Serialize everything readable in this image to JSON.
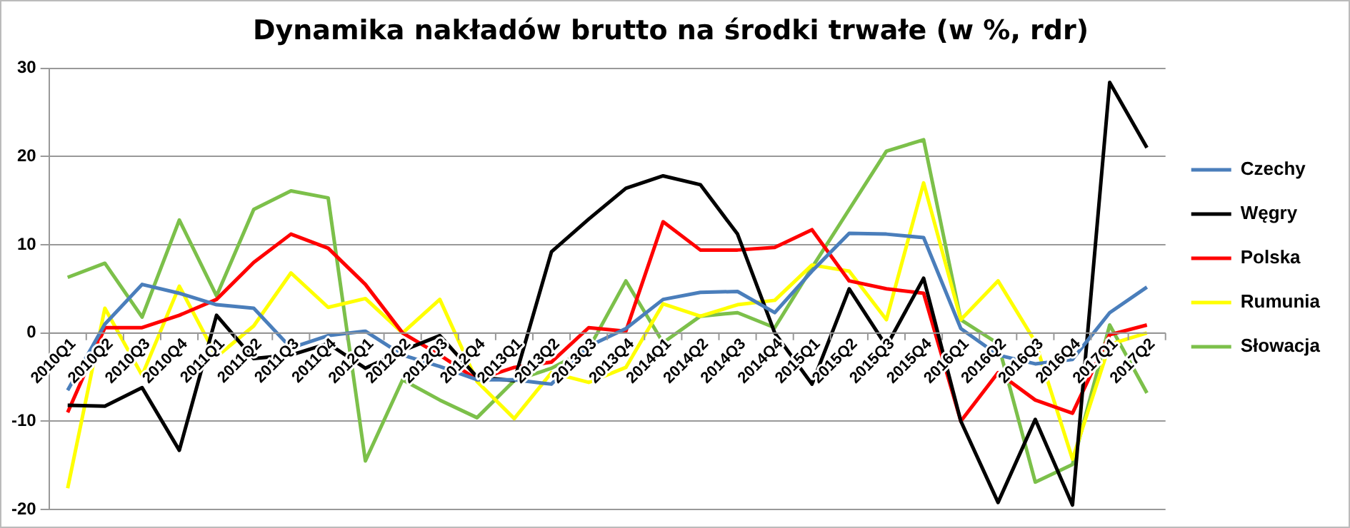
{
  "chart_data": {
    "type": "line",
    "title": "Dynamika nakładów brutto na środki trwałe (w %, rdr)",
    "categories": [
      "2010Q1",
      "2010Q2",
      "2010Q3",
      "2010Q4",
      "2011Q1",
      "2011Q2",
      "2011Q3",
      "2011Q4",
      "2012Q1",
      "2012Q2",
      "2012Q3",
      "2012Q4",
      "2013Q1",
      "2013Q2",
      "2013Q3",
      "2013Q4",
      "2014Q1",
      "2014Q2",
      "2014Q3",
      "2014Q4",
      "2015Q1",
      "2015Q2",
      "2015Q3",
      "2015Q4",
      "2016Q1",
      "2016Q2",
      "2016Q3",
      "2016Q4",
      "2017Q1",
      "2017Q2"
    ],
    "series": [
      {
        "name": "Czechy",
        "color": "#4a7ebb",
        "values": [
          -6.5,
          1,
          5.5,
          4.5,
          3.2,
          2.8,
          -1.7,
          -0.3,
          0.2,
          -2.5,
          -3.8,
          -5.3,
          -5.3,
          -5.8,
          -1.5,
          0.5,
          3.8,
          4.6,
          4.7,
          2.3,
          7,
          11.3,
          11.2,
          10.8,
          0.5,
          -2.5,
          -3.5,
          -3,
          2.3,
          5.2
        ]
      },
      {
        "name": "Węgry",
        "color": "#000000",
        "values": [
          -8.2,
          -8.3,
          -6.2,
          -13.3,
          2,
          -2.9,
          -2.5,
          -1.2,
          -4,
          -2,
          -0.3,
          -5,
          -5.4,
          9.2,
          12.9,
          16.4,
          17.8,
          16.8,
          11.2,
          0,
          -5.8,
          5,
          -1.5,
          6.2,
          -10,
          -19.2,
          -9.8,
          -19.5,
          28.4,
          21
        ]
      },
      {
        "name": "Polska",
        "color": "#ff0000",
        "values": [
          -9,
          0.6,
          0.6,
          2,
          3.8,
          8,
          11.2,
          9.6,
          5.5,
          0,
          -2.5,
          -5.3,
          -3.9,
          -3.3,
          0.6,
          0.2,
          12.6,
          9.4,
          9.4,
          9.7,
          11.7,
          5.9,
          5,
          4.5,
          -10,
          -4.5,
          -7.6,
          -9.1,
          -0.2,
          0.9
        ]
      },
      {
        "name": "Rumunia",
        "color": "#ffff00",
        "values": [
          -17.6,
          2.8,
          -4.8,
          5.3,
          -2.7,
          0.8,
          6.8,
          2.9,
          3.9,
          0,
          3.8,
          -5.5,
          -9.7,
          -4.5,
          -5.6,
          -3.9,
          3.3,
          1.9,
          3.2,
          3.7,
          7.7,
          7,
          1.5,
          17,
          1.5,
          5.9,
          -1,
          -14.3,
          -1.3,
          0
        ]
      },
      {
        "name": "Słowacja",
        "color": "#7cc04a",
        "values": [
          6.3,
          7.9,
          1.8,
          12.8,
          4.2,
          14,
          16.1,
          15.3,
          -14.5,
          -5.3,
          -7.6,
          -9.6,
          -5.4,
          -4,
          -1.8,
          5.9,
          -1.1,
          1.9,
          2.3,
          0.6,
          7.4,
          14,
          20.6,
          21.9,
          1.5,
          -1.2,
          -16.9,
          -14.9,
          0.9,
          -6.8
        ]
      }
    ],
    "ylim": [
      -20,
      30
    ],
    "yticks": [
      -20,
      -10,
      0,
      10,
      20,
      30
    ],
    "grid": "y",
    "legend": "right",
    "marker": "none",
    "line_style": "solid"
  }
}
